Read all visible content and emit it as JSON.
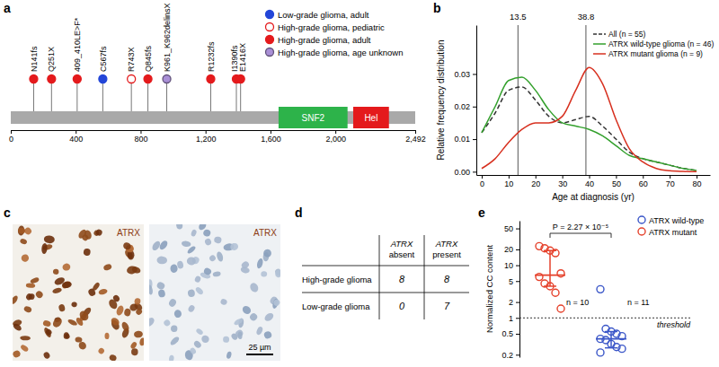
{
  "chart_data": [
    {
      "type": "lollipop",
      "series": [
        {
          "name": "Low-grade glioma, adult",
          "color": "#2346d8",
          "marker": "filled",
          "labels": [
            "C567fs"
          ],
          "x": [
            567
          ]
        },
        {
          "name": "High-grade glioma, pediatric",
          "color": "#e41a1c",
          "marker": "open",
          "labels": [
            "R743X"
          ],
          "x": [
            743
          ]
        },
        {
          "name": "High-grade glioma, adult",
          "color": "#e41a1c",
          "marker": "filled",
          "labels": [
            "N141fs",
            "Q251X",
            "409_410LE>F*",
            "Q845fs",
            "R1232fs",
            "I1390fs",
            "E1416X"
          ],
          "x": [
            141,
            251,
            409,
            845,
            1232,
            1390,
            1416
          ]
        },
        {
          "name": "High-grade glioma, age unknown",
          "color": "#a98fd6",
          "marker": "outlined",
          "labels": [
            "K961_K962delinsX"
          ],
          "x": [
            961
          ]
        }
      ],
      "domains": [
        {
          "name": "SNF2",
          "start": 1650,
          "end": 2075,
          "color": "#2db34a"
        },
        {
          "name": "Hel",
          "start": 2110,
          "end": 2330,
          "color": "#e41a1c"
        }
      ],
      "xlim": [
        0,
        2492
      ],
      "xticks": [
        0,
        400,
        800,
        {
          "value": 1200,
          "label": "1,200"
        },
        {
          "value": 1600,
          "label": "1,600"
        },
        {
          "value": 2000,
          "label": "2,000"
        },
        {
          "value": 2492,
          "label": "2,492"
        }
      ],
      "legend": "top-right",
      "tick_labels": "x"
    },
    {
      "type": "line",
      "xlabel": "Age at diagnosis (yr)",
      "ylabel": "Relative frequency distribution",
      "x": [
        0,
        5,
        10,
        15,
        20,
        25,
        30,
        35,
        40,
        45,
        50,
        55,
        60,
        65,
        70,
        75,
        80
      ],
      "series": [
        {
          "name": "All (n = 55)",
          "color": "#333333",
          "line_style": "dashed",
          "values": [
            0.012,
            0.018,
            0.025,
            0.026,
            0.022,
            0.017,
            0.015,
            0.016,
            0.017,
            0.014,
            0.01,
            0.006,
            0.004,
            0.003,
            0.002,
            0.001,
            0.0004
          ]
        },
        {
          "name": "ATRX wild-type glioma (n = 46)",
          "color": "#33a02c",
          "line_style": "solid",
          "values": [
            0.012,
            0.02,
            0.028,
            0.029,
            0.025,
            0.019,
            0.015,
            0.014,
            0.013,
            0.011,
            0.008,
            0.005,
            0.004,
            0.003,
            0.002,
            0.001,
            0.0004
          ]
        },
        {
          "name": "ATRX mutant glioma (n = 9)",
          "color": "#d7301f",
          "line_style": "solid",
          "values": [
            0.001,
            0.004,
            0.009,
            0.013,
            0.015,
            0.015,
            0.017,
            0.025,
            0.032,
            0.027,
            0.016,
            0.007,
            0.003,
            0.001,
            0.0003,
            0.0001,
            0
          ]
        }
      ],
      "vlines": [
        13.5,
        38.8
      ],
      "xlim": [
        -2,
        85
      ],
      "xticks": [
        0,
        10,
        20,
        30,
        40,
        50,
        60,
        70,
        80
      ],
      "ylim": [
        -0.001,
        0.045
      ],
      "yticks": [
        {
          "value": 0,
          "label": "0.00"
        },
        {
          "value": 0.01,
          "label": "0.01"
        },
        {
          "value": 0.02,
          "label": "0.02"
        },
        {
          "value": 0.03,
          "label": "0.03"
        }
      ],
      "legend": "top-right",
      "grid": false
    },
    {
      "type": "strip",
      "ylabel": "Normalized CC content",
      "log": "y",
      "ylim": [
        0.18,
        70
      ],
      "yticks": [
        0.2,
        0.5,
        1,
        2,
        5,
        10,
        20,
        50
      ],
      "series": [
        {
          "name": "ATRX wild-type",
          "color": "#3a56c8",
          "marker": "open",
          "values": [
            3.5,
            0.62,
            0.55,
            0.5,
            0.45,
            0.4,
            0.38,
            0.32,
            0.28,
            0.26,
            0.22
          ],
          "median": 0.4,
          "iqr": [
            0.27,
            0.55
          ],
          "n_label": "n = 11"
        },
        {
          "name": "ATRX mutant",
          "color": "#e5412b",
          "marker": "open",
          "values": [
            23,
            21,
            19,
            17,
            7,
            6,
            4.5,
            4,
            3,
            1.5
          ],
          "median": 6.5,
          "iqr": [
            4,
            19
          ],
          "n_label": "n = 10"
        }
      ],
      "threshold": {
        "value": 1,
        "label": "threshold"
      },
      "p_value": "P = 2.27 × 10⁻⁵",
      "legend": "top-right",
      "tick_labels": "y"
    }
  ],
  "figure": {
    "panel_labels": [
      "a",
      "b",
      "c",
      "d",
      "e"
    ],
    "images": [
      {
        "label": "ATRX"
      },
      {
        "label": "ATRX",
        "scale_bar": "25 µm"
      }
    ],
    "table": {
      "columns": [
        "ATRX absent",
        "ATRX present"
      ],
      "rows": [
        {
          "label": "High-grade glioma",
          "values": [
            8,
            8
          ]
        },
        {
          "label": "Low-grade glioma",
          "values": [
            0,
            7
          ]
        }
      ]
    }
  }
}
